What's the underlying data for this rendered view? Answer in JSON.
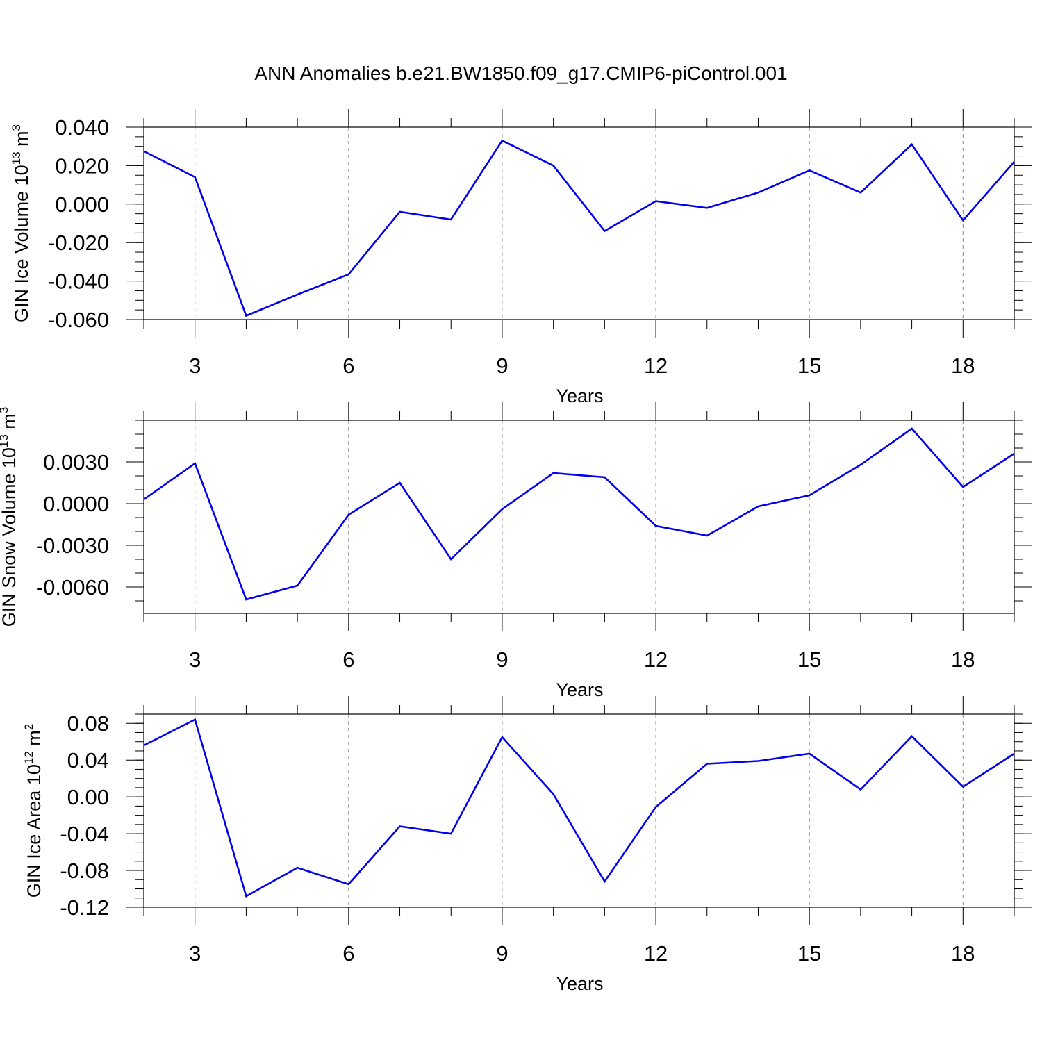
{
  "title": "ANN Anomalies b.e21.BW1850.f09_g17.CMIP6-piControl.001",
  "line_color": "#0000ee",
  "grid_color": "#888888",
  "chart_data": [
    {
      "type": "line",
      "ylabel_main": "GIN Ice Volume 10",
      "ylabel_exp": "13",
      "ylabel_unit": " m",
      "ylabel_unit_exp": "3",
      "xlabel": "Years",
      "xlim": [
        2,
        19
      ],
      "ylim": [
        -0.06,
        0.04
      ],
      "yticks": [
        -0.06,
        -0.04,
        -0.02,
        0.0,
        0.02,
        0.04
      ],
      "ytick_labels": [
        "-0.060",
        "-0.040",
        "-0.020",
        "0.000",
        "0.020",
        "0.040"
      ],
      "yminor_step": 0.005,
      "xticks": [
        3,
        6,
        9,
        12,
        15,
        18
      ],
      "xtick_labels": [
        "3",
        "6",
        "9",
        "12",
        "15",
        "18"
      ],
      "grid_x": true,
      "x": [
        2,
        3,
        4,
        5,
        6,
        7,
        8,
        9,
        10,
        11,
        12,
        13,
        14,
        15,
        16,
        17,
        18,
        19
      ],
      "values": [
        0.0275,
        0.014,
        -0.058,
        -0.047,
        -0.0365,
        -0.004,
        -0.008,
        0.033,
        0.02,
        -0.014,
        0.0015,
        -0.002,
        0.006,
        0.0175,
        0.006,
        0.031,
        -0.0085,
        0.022
      ]
    },
    {
      "type": "line",
      "ylabel_main": "GIN Snow Volume 10",
      "ylabel_exp": "13",
      "ylabel_unit": " m",
      "ylabel_unit_exp": "3",
      "xlabel": "Years",
      "xlim": [
        2,
        19
      ],
      "ylim": [
        -0.0079,
        0.006
      ],
      "yticks": [
        -0.006,
        -0.003,
        0.0,
        0.003
      ],
      "ytick_labels": [
        "-0.0060",
        "-0.0030",
        "0.0000",
        "0.0030"
      ],
      "yminor_step": 0.001,
      "xticks": [
        3,
        6,
        9,
        12,
        15,
        18
      ],
      "xtick_labels": [
        "3",
        "6",
        "9",
        "12",
        "15",
        "18"
      ],
      "grid_x": true,
      "x": [
        2,
        3,
        4,
        5,
        6,
        7,
        8,
        9,
        10,
        11,
        12,
        13,
        14,
        15,
        16,
        17,
        18,
        19
      ],
      "values": [
        0.0003,
        0.0029,
        -0.0069,
        -0.0059,
        -0.0008,
        0.0015,
        -0.004,
        -0.0004,
        0.0022,
        0.0019,
        -0.0016,
        -0.0023,
        -0.0002,
        0.0006,
        0.0028,
        0.0054,
        0.0012,
        0.0036
      ]
    },
    {
      "type": "line",
      "ylabel_main": "GIN Ice Area 10",
      "ylabel_exp": "12",
      "ylabel_unit": " m",
      "ylabel_unit_exp": "2",
      "xlabel": "Years",
      "xlim": [
        2,
        19
      ],
      "ylim": [
        -0.12,
        0.09
      ],
      "yticks": [
        -0.12,
        -0.08,
        -0.04,
        0.0,
        0.04,
        0.08
      ],
      "ytick_labels": [
        "-0.12",
        "-0.08",
        "-0.04",
        "0.00",
        "0.04",
        "0.08"
      ],
      "yminor_step": 0.01,
      "xticks": [
        3,
        6,
        9,
        12,
        15,
        18
      ],
      "xtick_labels": [
        "3",
        "6",
        "9",
        "12",
        "15",
        "18"
      ],
      "grid_x": true,
      "x": [
        2,
        3,
        4,
        5,
        6,
        7,
        8,
        9,
        10,
        11,
        12,
        13,
        14,
        15,
        16,
        17,
        18,
        19
      ],
      "values": [
        0.056,
        0.084,
        -0.108,
        -0.077,
        -0.095,
        -0.032,
        -0.04,
        0.065,
        0.003,
        -0.092,
        -0.011,
        0.036,
        0.039,
        0.047,
        0.008,
        0.066,
        0.011,
        0.047
      ]
    }
  ]
}
